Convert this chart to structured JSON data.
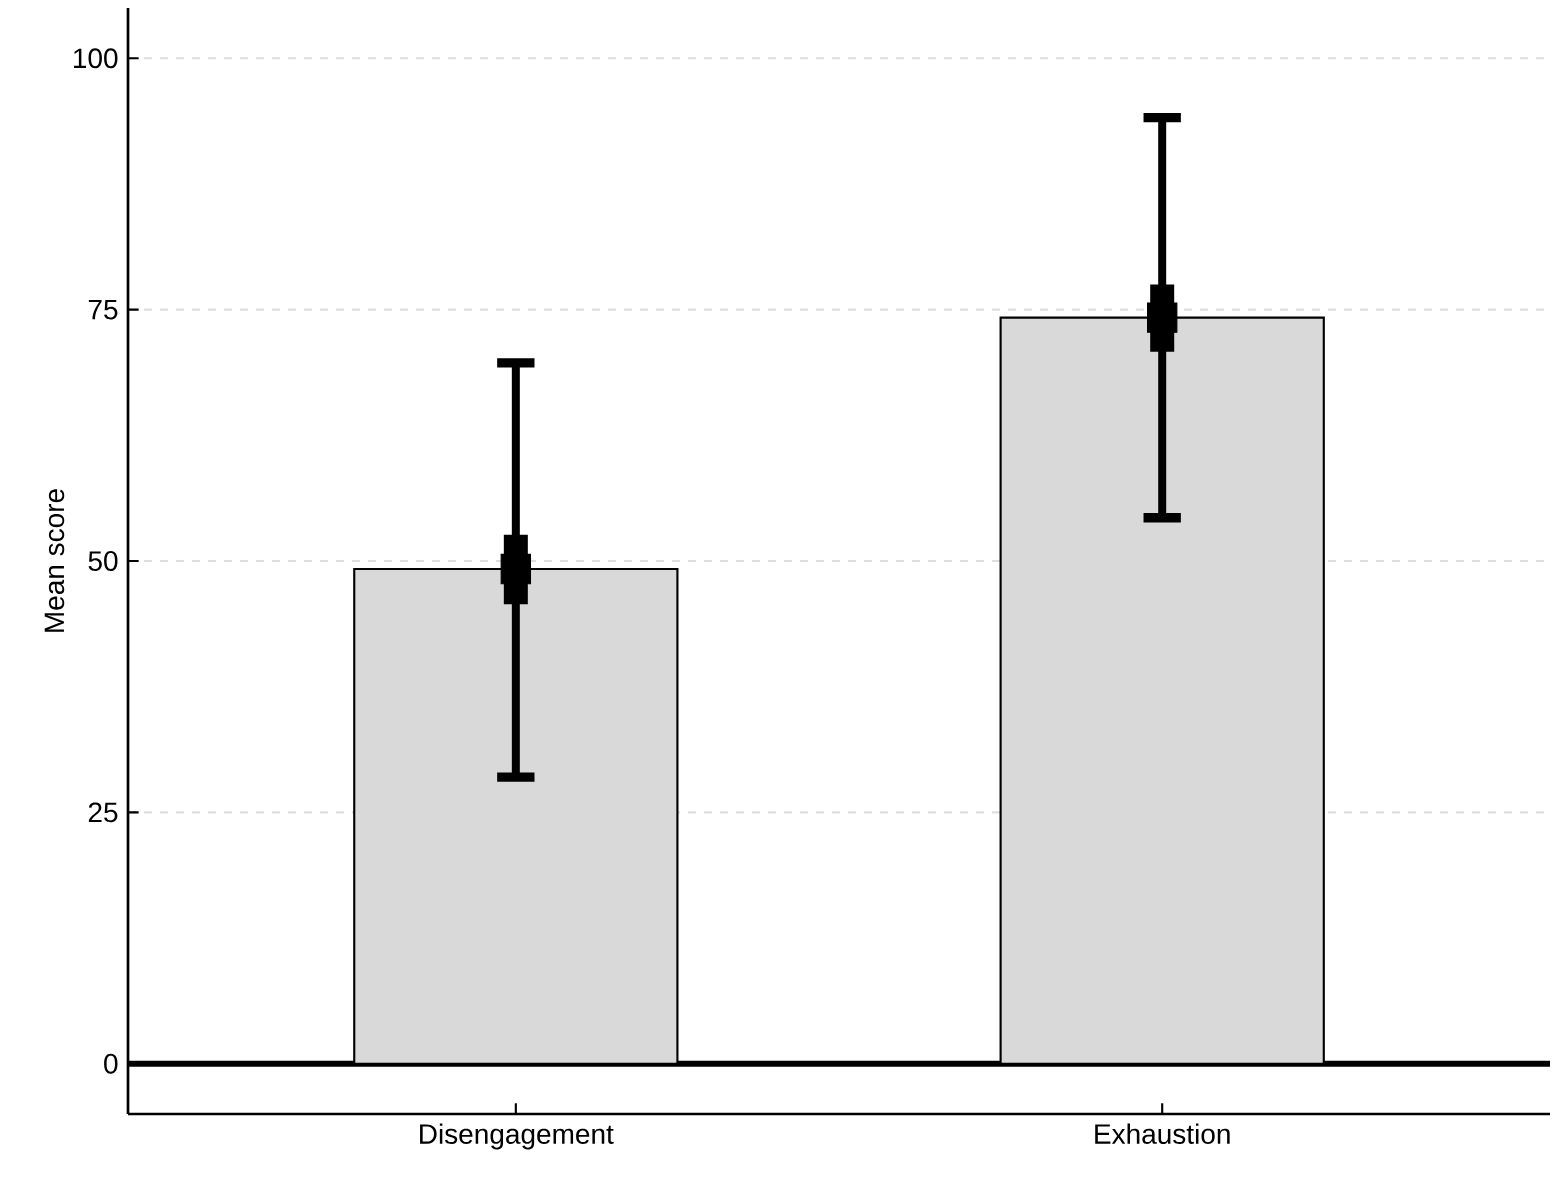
{
  "chart_data": {
    "type": "bar",
    "categories": [
      "Disengagement",
      "Exhaustion"
    ],
    "ylabel": "Mean score",
    "ylim": [
      -5,
      105
    ],
    "yticks": [
      0,
      25,
      50,
      75,
      100
    ],
    "grid": "y",
    "ref_lines": [
      {
        "axis": "y",
        "value": 0,
        "color": "#000000"
      }
    ],
    "series": [
      {
        "color": "#d9d9d9",
        "values": [
          49.2,
          74.2
        ],
        "errors": [
          [
            28.5,
            69.7
          ],
          [
            54.3,
            94.1
          ]
        ]
      },
      {
        "type": "scatter",
        "color": "#000000",
        "marker": "square",
        "values": [
          49.2,
          74.2
        ],
        "errors": [
          [
            45.7,
            52.6
          ],
          [
            70.8,
            77.5
          ]
        ]
      }
    ]
  }
}
